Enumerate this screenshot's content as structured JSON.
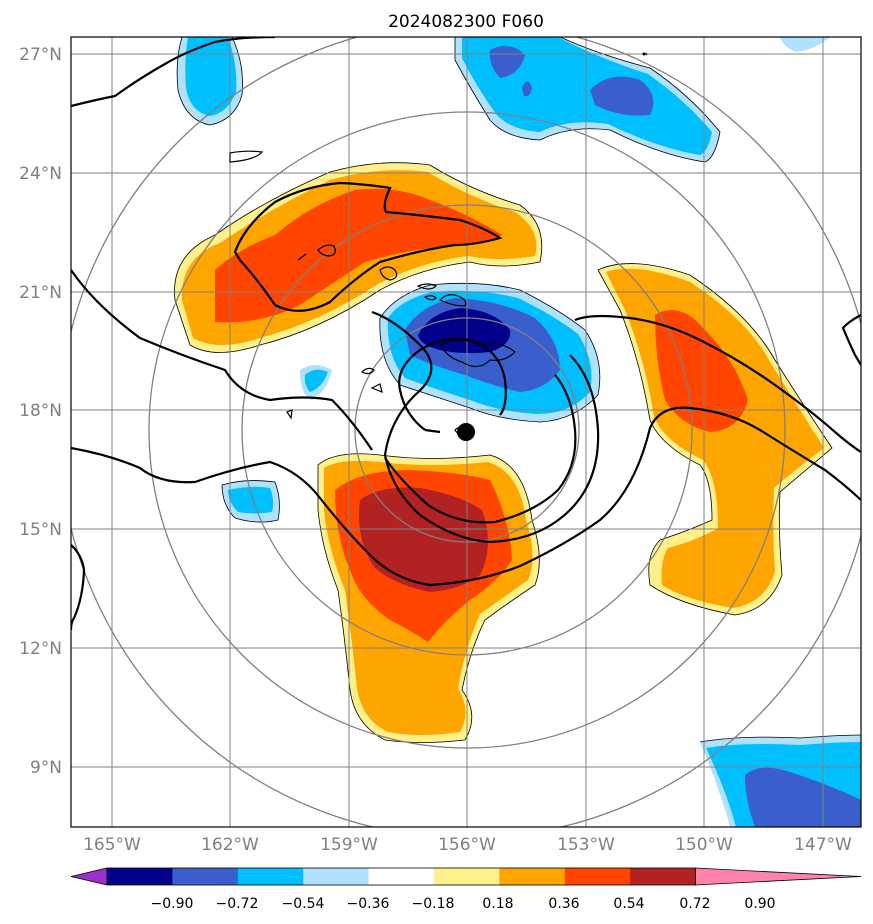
{
  "title": "2024082300 F060",
  "lat_labels": [
    "27°N",
    "24°N",
    "21°N",
    "18°N",
    "15°N",
    "12°N",
    "9°N"
  ],
  "lon_labels": [
    "165°W",
    "162°W",
    "159°W",
    "156°W",
    "153°W",
    "150°W",
    "147°W"
  ],
  "colorbar": {
    "labels": [
      "−0.90",
      "−0.72",
      "−0.54",
      "−0.36",
      "−0.18",
      "0.18",
      "0.36",
      "0.54",
      "0.72",
      "0.90"
    ],
    "colors": [
      "#9932cc",
      "#00008b",
      "#3a5fcd",
      "#00bfff",
      "#b0e2ff",
      "#ffffff",
      "#fff08a",
      "#ffa500",
      "#ff4500",
      "#b22222",
      "#ff82ab"
    ]
  },
  "colors": {
    "grid": "#808080",
    "contour": "#000000",
    "coast": "#000000"
  },
  "center_marker": "storm-center"
}
